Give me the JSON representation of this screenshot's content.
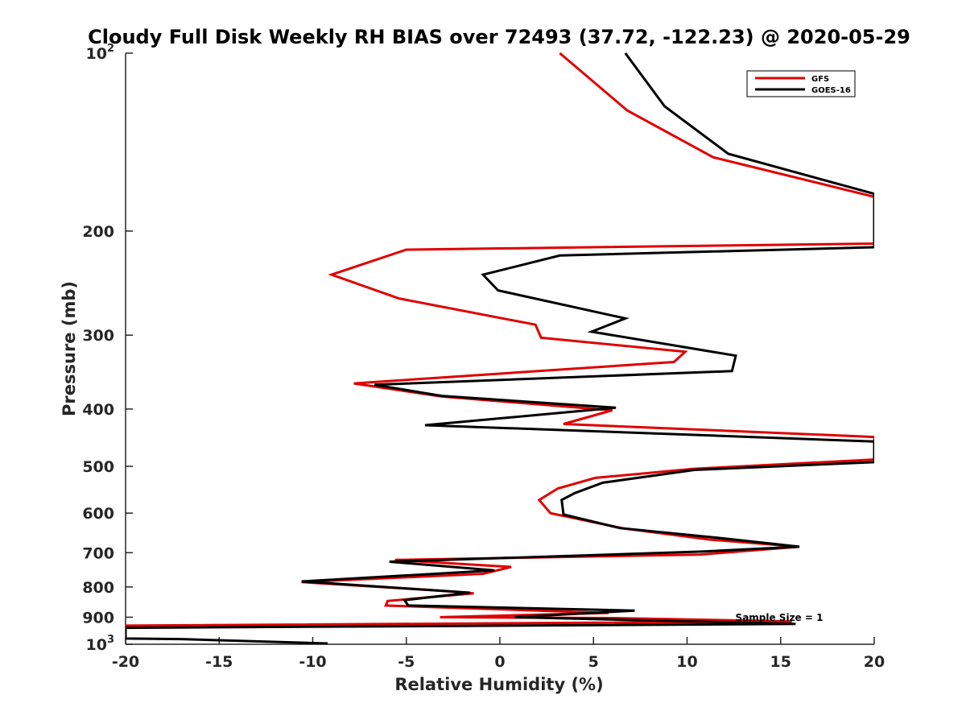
{
  "chart_data": {
    "type": "line",
    "title": "Cloudy Full Disk Weekly RH BIAS over 72493 (37.72, -122.23) @ 2020-05-29",
    "xlabel": "Relative Humidity (%)",
    "ylabel": "Pressure (mb)",
    "xlim": [
      -20,
      20
    ],
    "ylim": [
      100,
      1000
    ],
    "yscale": "log",
    "y_reversed": true,
    "grid": false,
    "legend_position": "top-right",
    "x_ticks": [
      {
        "value": -20,
        "label": "-20"
      },
      {
        "value": -15,
        "label": "-15"
      },
      {
        "value": -10,
        "label": "-10"
      },
      {
        "value": -5,
        "label": "-5"
      },
      {
        "value": 0,
        "label": "0"
      },
      {
        "value": 5,
        "label": "5"
      },
      {
        "value": 10,
        "label": "10"
      },
      {
        "value": 15,
        "label": "15"
      },
      {
        "value": 20,
        "label": "20"
      }
    ],
    "y_ticks": [
      {
        "value": 100,
        "label": "10",
        "sup": "2"
      },
      {
        "value": 200,
        "label": "200"
      },
      {
        "value": 300,
        "label": "300"
      },
      {
        "value": 400,
        "label": "400"
      },
      {
        "value": 500,
        "label": "500"
      },
      {
        "value": 600,
        "label": "600"
      },
      {
        "value": 700,
        "label": "700"
      },
      {
        "value": 800,
        "label": "800"
      },
      {
        "value": 900,
        "label": "900"
      },
      {
        "value": 1000,
        "label": "10",
        "sup": "3"
      }
    ],
    "annotation": "Sample Size = 1",
    "series": [
      {
        "name": "GFS",
        "color": "#e00000",
        "points": [
          [
            3.2,
            100
          ],
          [
            6.8,
            125
          ],
          [
            11.4,
            150
          ],
          [
            20,
            175
          ],
          [
            20,
            210
          ],
          [
            -5.0,
            215
          ],
          [
            -9.0,
            237
          ],
          [
            -5.4,
            260
          ],
          [
            1.9,
            288
          ],
          [
            2.2,
            303
          ],
          [
            9.9,
            320
          ],
          [
            9.3,
            333
          ],
          [
            -7.8,
            362
          ],
          [
            -3.1,
            381
          ],
          [
            6.0,
            402
          ],
          [
            3.4,
            424
          ],
          [
            20,
            446
          ],
          [
            20,
            487
          ],
          [
            10.3,
            505
          ],
          [
            5.1,
            523
          ],
          [
            3.1,
            545
          ],
          [
            2.1,
            570
          ],
          [
            2.7,
            600
          ],
          [
            6.6,
            637
          ],
          [
            11.2,
            665
          ],
          [
            16.0,
            684
          ],
          [
            10.7,
            705
          ],
          [
            -5.6,
            720
          ],
          [
            0.6,
            740
          ],
          [
            -0.9,
            760
          ],
          [
            -10.6,
            785
          ],
          [
            -3.1,
            812
          ],
          [
            -1.4,
            820
          ],
          [
            -6.0,
            845
          ],
          [
            -6.1,
            860
          ],
          [
            5.8,
            885
          ],
          [
            -3.2,
            900
          ],
          [
            6.0,
            903
          ],
          [
            15.6,
            915
          ],
          [
            -20,
            930
          ]
        ]
      },
      {
        "name": "GOES-16",
        "color": "#000000",
        "points": [
          [
            6.7,
            100
          ],
          [
            8.8,
            123
          ],
          [
            12.2,
            148
          ],
          [
            20,
            173
          ],
          [
            20,
            213
          ],
          [
            3.2,
            220
          ],
          [
            -0.9,
            237
          ],
          [
            -0.1,
            252
          ],
          [
            6.7,
            281
          ],
          [
            4.9,
            296
          ],
          [
            12.6,
            325
          ],
          [
            12.4,
            345
          ],
          [
            -6.7,
            364
          ],
          [
            -3.1,
            380
          ],
          [
            6.2,
            398
          ],
          [
            -4.0,
            426
          ],
          [
            5.8,
            437
          ],
          [
            20,
            454
          ],
          [
            20,
            492
          ],
          [
            10.4,
            507
          ],
          [
            5.5,
            533
          ],
          [
            4.0,
            555
          ],
          [
            3.3,
            570
          ],
          [
            3.4,
            603
          ],
          [
            6.4,
            636
          ],
          [
            11.5,
            660
          ],
          [
            16.0,
            684
          ],
          [
            10.8,
            697
          ],
          [
            -5.9,
            725
          ],
          [
            -0.3,
            750
          ],
          [
            -10.6,
            783
          ],
          [
            -1.6,
            818
          ],
          [
            -5.1,
            842
          ],
          [
            -4.9,
            860
          ],
          [
            7.2,
            877
          ],
          [
            0.8,
            900
          ],
          [
            15.8,
            924
          ],
          [
            -20,
            938
          ],
          [
            -20,
            978
          ],
          [
            -17.0,
            980
          ],
          [
            -9.2,
            997
          ]
        ]
      }
    ]
  }
}
